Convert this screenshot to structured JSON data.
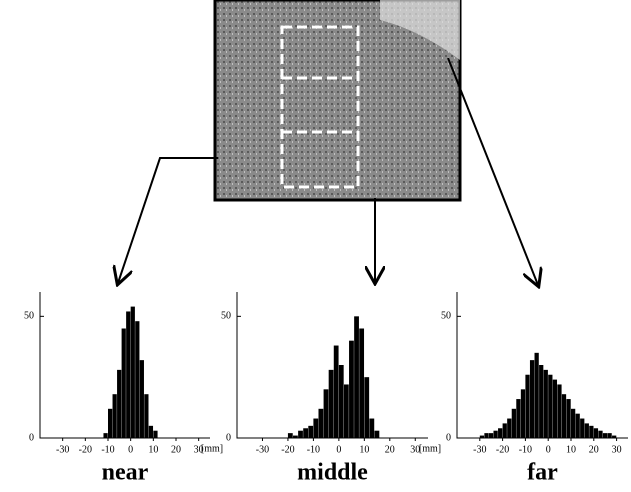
{
  "chart_data": [
    {
      "type": "histogram",
      "title": "near",
      "xlabel": "[mm]",
      "color": "#000000",
      "bins": [
        -12,
        -10,
        -8,
        -6,
        -4,
        -2,
        0,
        2,
        4,
        6,
        8,
        10,
        12
      ],
      "values": [
        2,
        12,
        18,
        28,
        45,
        52,
        54,
        48,
        32,
        18,
        5,
        3
      ],
      "xlim": [
        -40,
        35
      ],
      "xticks": [
        -30,
        -20,
        -10,
        0,
        10,
        20,
        30
      ],
      "ylim": [
        0,
        60
      ],
      "yticks": [
        0,
        50
      ]
    },
    {
      "type": "histogram",
      "title": "middle",
      "xlabel": "[mm]",
      "color": "#000000",
      "bins": [
        -20,
        -18,
        -16,
        -14,
        -12,
        -10,
        -8,
        -6,
        -4,
        -2,
        0,
        2,
        4,
        6,
        8,
        10,
        12,
        14,
        16
      ],
      "values": [
        2,
        1,
        3,
        4,
        5,
        8,
        12,
        20,
        28,
        38,
        30,
        22,
        40,
        50,
        45,
        25,
        8,
        3
      ],
      "xlim": [
        -40,
        35
      ],
      "xticks": [
        -30,
        -20,
        -10,
        0,
        10,
        20,
        30
      ],
      "ylim": [
        0,
        60
      ],
      "yticks": [
        0,
        50
      ]
    },
    {
      "type": "histogram",
      "title": "far",
      "color": "#000000",
      "bins": [
        -30,
        -28,
        -26,
        -24,
        -22,
        -20,
        -18,
        -16,
        -14,
        -12,
        -10,
        -8,
        -6,
        -4,
        -2,
        0,
        2,
        4,
        6,
        8,
        10,
        12,
        14,
        16,
        18,
        20,
        22,
        24,
        26,
        28,
        30
      ],
      "values": [
        1,
        2,
        2,
        3,
        4,
        6,
        8,
        12,
        16,
        20,
        26,
        32,
        35,
        30,
        28,
        26,
        24,
        22,
        18,
        16,
        12,
        10,
        8,
        6,
        5,
        4,
        3,
        2,
        2,
        1
      ],
      "xlim": [
        -40,
        35
      ],
      "xticks": [
        -30,
        -20,
        -10,
        0,
        10,
        20,
        30
      ],
      "ylim": [
        0,
        60
      ],
      "yticks": [
        0,
        50
      ]
    }
  ]
}
